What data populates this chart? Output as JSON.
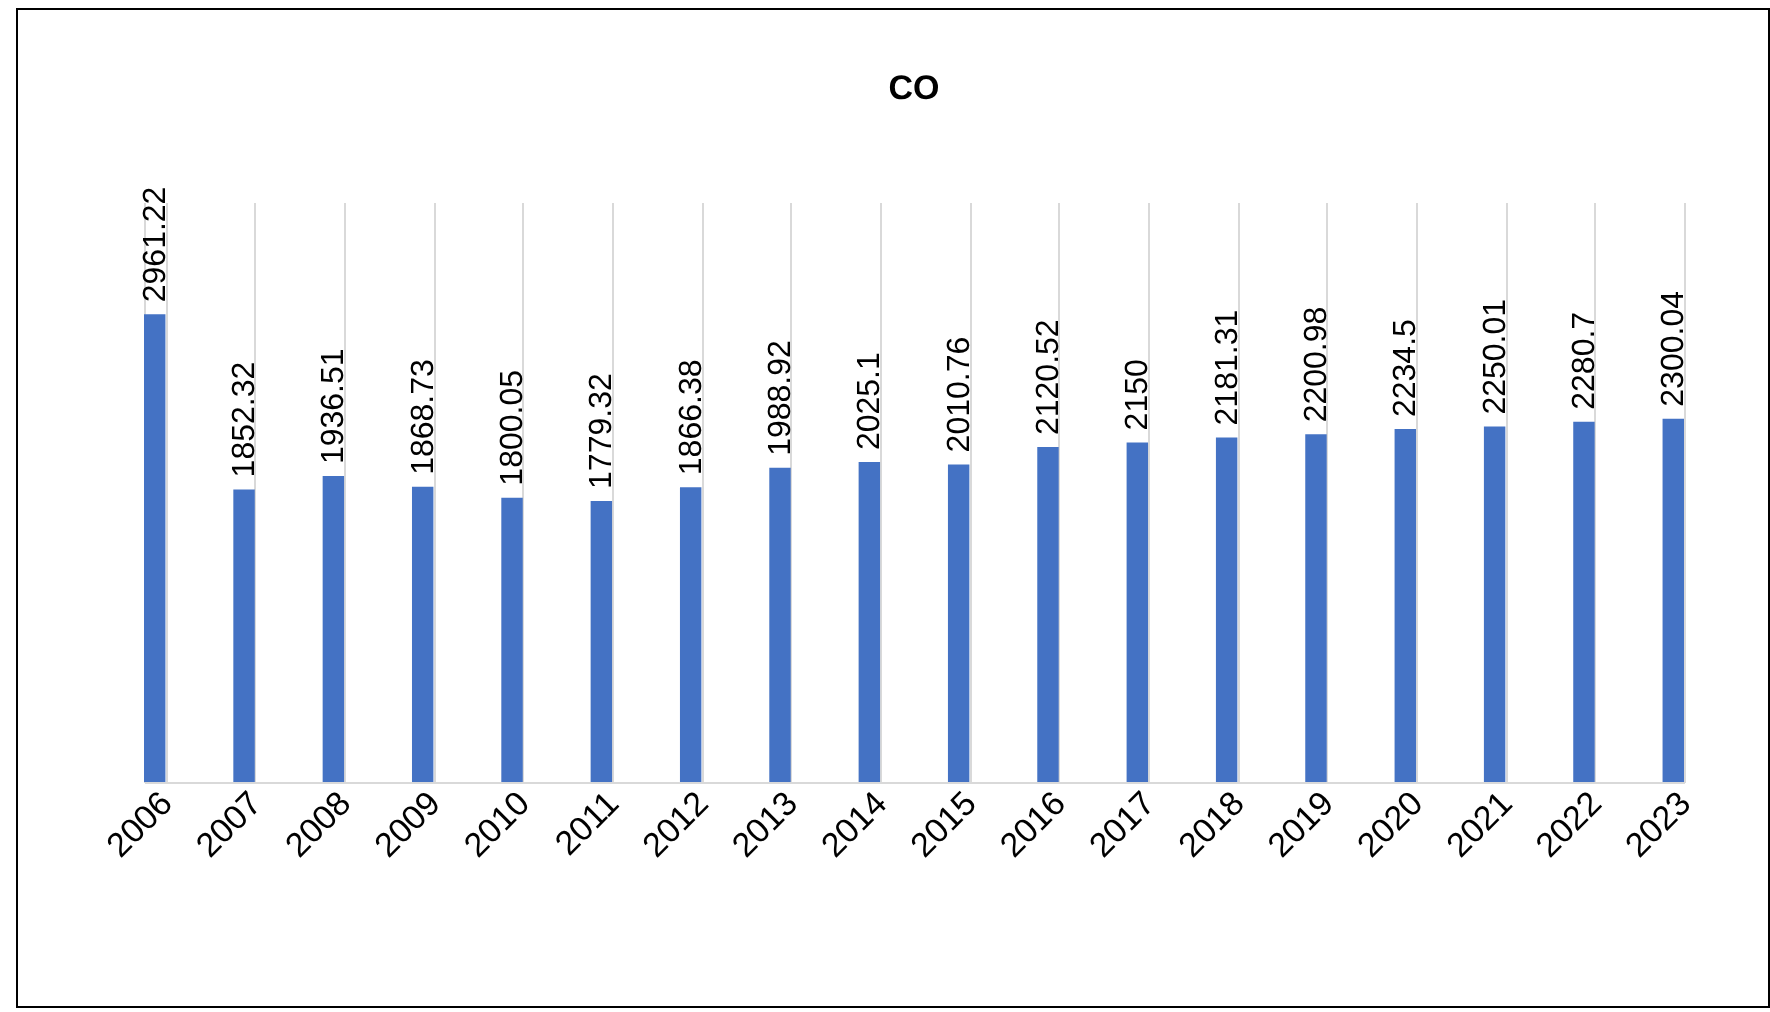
{
  "chart_data": {
    "type": "bar",
    "title": "CO",
    "categories": [
      "2006",
      "2007",
      "2008",
      "2009",
      "2010",
      "2011",
      "2012",
      "2013",
      "2014",
      "2015",
      "2016",
      "2017",
      "2018",
      "2019",
      "2020",
      "2021",
      "2022",
      "2023"
    ],
    "values": [
      2961.22,
      1852.32,
      1936.51,
      1868.73,
      1800.05,
      1779.32,
      1866.38,
      1988.92,
      2025.1,
      2010.76,
      2120.52,
      2150,
      2181.31,
      2200.98,
      2234.5,
      2250.01,
      2280.7,
      2300.04
    ],
    "color": "#4472c4",
    "data_labels": true,
    "grid": "x",
    "tick_labels": "x"
  }
}
